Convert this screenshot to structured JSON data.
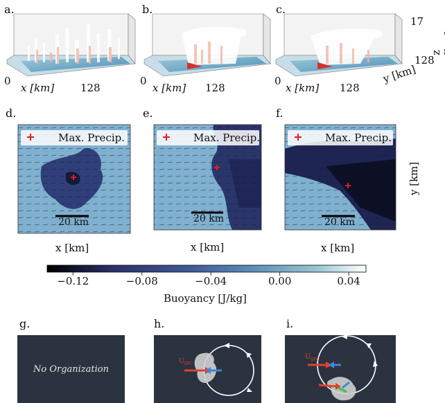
{
  "row1": {
    "panels": [
      "a.",
      "b.",
      "c."
    ],
    "x_label": "x [km]",
    "x_tick_start": "0",
    "x_tick_end": "128",
    "y_label": "y [km]",
    "y_tick": "128",
    "z_label": "z [km]",
    "z_tick": "17"
  },
  "row2": {
    "panels": [
      "d.",
      "e.",
      "f."
    ],
    "legend_label": "Max. Precip.",
    "scale_label": "20 km",
    "x_label": "x [km]",
    "y_label": "y [km]"
  },
  "colorbar": {
    "ticks": [
      "−0.12",
      "−0.08",
      "−0.04",
      "0.00",
      "0.04"
    ],
    "tick_values": [
      -0.12,
      -0.08,
      -0.04,
      0.0,
      0.04
    ],
    "range": [
      -0.135,
      0.05
    ],
    "label": "Buoyancy [J/kg]",
    "colors": [
      "#000000",
      "#2a2f66",
      "#3f5b98",
      "#5c90b8",
      "#9cc6d6",
      "#ffffff"
    ]
  },
  "row3": {
    "panels": [
      "g.",
      "h.",
      "i."
    ],
    "g_text": "No Organization",
    "u_main": "U",
    "u_sub": "SFC",
    "panel_bg": "#2b3240"
  }
}
